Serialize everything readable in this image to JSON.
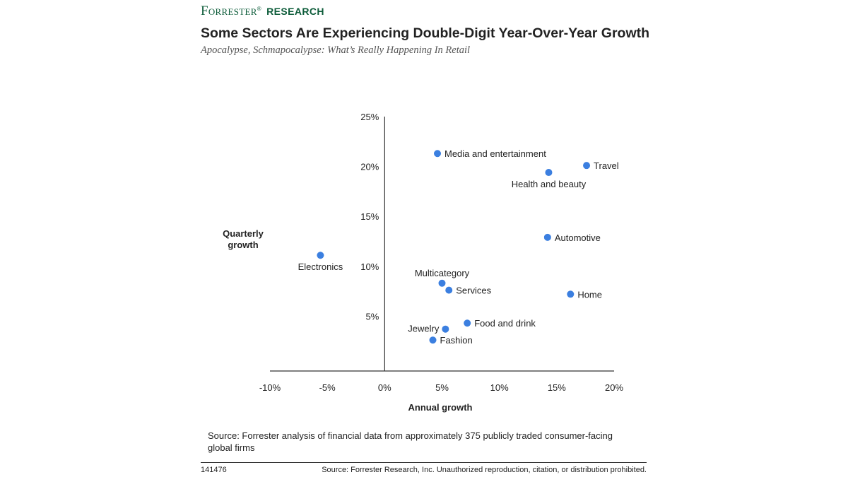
{
  "brand": {
    "name": "Forrester",
    "suffix": "RESEARCH",
    "color": "#0d5c3a"
  },
  "header": {
    "title": "Some Sectors Are Experiencing Double-Digit Year-Over-Year Growth",
    "subtitle": "Apocalypse, Schmapocalypse: What’s Really Happening In Retail"
  },
  "chart_data": {
    "type": "scatter",
    "title": "Some Sectors Are Experiencing Double-Digit Year-Over-Year Growth",
    "xlabel": "Annual growth",
    "ylabel_lines": [
      "Quarterly",
      "growth"
    ],
    "xlim": [
      -10,
      20
    ],
    "ylim": [
      -0.5,
      25
    ],
    "x_ticks": [
      {
        "value": -10,
        "label": "-10%"
      },
      {
        "value": -5,
        "label": "-5%"
      },
      {
        "value": 0,
        "label": "0%"
      },
      {
        "value": 5,
        "label": "5%"
      },
      {
        "value": 10,
        "label": "10%"
      },
      {
        "value": 15,
        "label": "15%"
      },
      {
        "value": 20,
        "label": "20%"
      }
    ],
    "y_ticks": [
      {
        "value": 5,
        "label": "5%"
      },
      {
        "value": 10,
        "label": "10%"
      },
      {
        "value": 15,
        "label": "15%"
      },
      {
        "value": 20,
        "label": "20%"
      },
      {
        "value": 25,
        "label": "25%"
      }
    ],
    "point_color": "#3b7fe0",
    "points": [
      {
        "label": "Media and entertainment",
        "x": 4.6,
        "y": 21.3,
        "label_pos": "right"
      },
      {
        "label": "Travel",
        "x": 17.6,
        "y": 20.1,
        "label_pos": "right"
      },
      {
        "label": "Health and beauty",
        "x": 14.3,
        "y": 19.4,
        "label_pos": "below"
      },
      {
        "label": "Automotive",
        "x": 14.2,
        "y": 12.9,
        "label_pos": "right"
      },
      {
        "label": "Electronics",
        "x": -5.6,
        "y": 11.1,
        "label_pos": "below"
      },
      {
        "label": "Multicategory",
        "x": 5.0,
        "y": 8.3,
        "label_pos": "above"
      },
      {
        "label": "Services",
        "x": 5.6,
        "y": 7.6,
        "label_pos": "right"
      },
      {
        "label": "Home",
        "x": 16.2,
        "y": 7.2,
        "label_pos": "right"
      },
      {
        "label": "Food and drink",
        "x": 7.2,
        "y": 4.3,
        "label_pos": "right"
      },
      {
        "label": "Jewelry",
        "x": 5.3,
        "y": 3.7,
        "label_pos": "left"
      },
      {
        "label": "Fashion",
        "x": 4.2,
        "y": 2.6,
        "label_pos": "right"
      }
    ]
  },
  "source_note": "Source: Forrester analysis of financial data from approximately 375 publicly traded consumer-facing global firms",
  "footer": {
    "id": "141476",
    "copyright": "Source: Forrester Research, Inc. Unauthorized reproduction, citation, or distribution prohibited."
  }
}
